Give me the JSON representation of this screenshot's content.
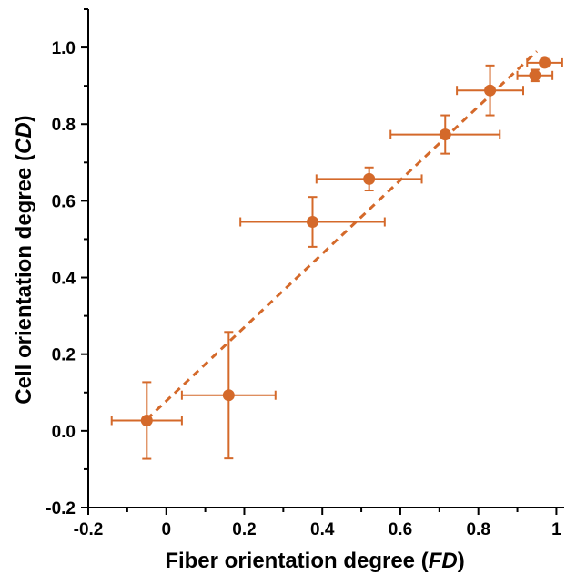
{
  "chart_data": {
    "type": "scatter",
    "xlabel": "Fiber orientation degree (",
    "xlabel_italic": "FD",
    "xlabel_end": ")",
    "ylabel": "Cell orientation degree (",
    "ylabel_italic": "CD",
    "ylabel_end": ")",
    "xlim": [
      -0.2,
      1.02
    ],
    "ylim": [
      -0.2,
      1.1
    ],
    "xticks": [
      -0.2,
      0,
      0.2,
      0.4,
      0.6,
      0.8,
      1
    ],
    "xtick_labels": [
      "-0.2",
      "0",
      "0.2",
      "0.4",
      "0.6",
      "0.8",
      "1"
    ],
    "yticks": [
      -0.2,
      0.0,
      0.2,
      0.4,
      0.6,
      0.8,
      1.0
    ],
    "ytick_labels": [
      "-0.2",
      "0.0",
      "0.2",
      "0.4",
      "0.6",
      "0.8",
      "1.0"
    ],
    "grid": false,
    "color": "#D4692A",
    "points": [
      {
        "x": -0.05,
        "y": 0.027,
        "xerr": 0.09,
        "yerr": 0.1
      },
      {
        "x": 0.16,
        "y": 0.093,
        "xerr": 0.12,
        "yerr": 0.165
      },
      {
        "x": 0.375,
        "y": 0.545,
        "xerr": 0.185,
        "yerr": 0.065
      },
      {
        "x": 0.52,
        "y": 0.657,
        "xerr": 0.135,
        "yerr": 0.03
      },
      {
        "x": 0.715,
        "y": 0.773,
        "xerr": 0.14,
        "yerr": 0.05
      },
      {
        "x": 0.83,
        "y": 0.888,
        "xerr": 0.085,
        "yerr": 0.065
      },
      {
        "x": 0.945,
        "y": 0.927,
        "xerr": 0.045,
        "yerr": 0.015
      },
      {
        "x": 0.97,
        "y": 0.96,
        "xerr": 0.045,
        "yerr": 0.01
      }
    ],
    "fit_line": {
      "x": [
        -0.05,
        0.95
      ],
      "y": [
        0.03,
        0.99
      ]
    }
  }
}
